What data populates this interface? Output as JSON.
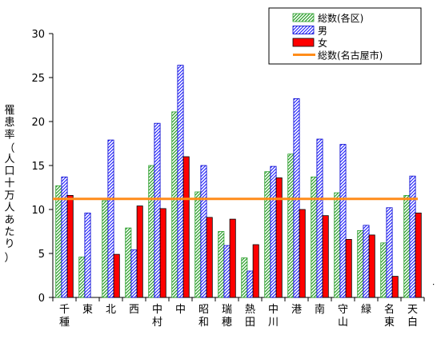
{
  "chart_data": {
    "type": "bar",
    "categories": [
      "千種",
      "東",
      "北",
      "西",
      "中村",
      "中",
      "昭和",
      "瑞穂",
      "熱田",
      "中川",
      "港",
      "南",
      "守山",
      "緑",
      "名東",
      "天白"
    ],
    "ylabel": "罹患率（人口十万人あたり）",
    "ylim": [
      0,
      30
    ],
    "yticks": [
      0,
      5,
      10,
      15,
      20,
      25,
      30
    ],
    "grid": false,
    "legend_position": "top-right",
    "series": [
      {
        "name": "総数(各区)",
        "color": "#2ca02c",
        "pattern": "green-diagonal-hatch",
        "values": [
          12.7,
          4.6,
          11.0,
          7.9,
          15.0,
          21.1,
          12.0,
          7.5,
          4.5,
          14.3,
          16.3,
          13.7,
          11.9,
          7.6,
          6.2,
          11.6
        ]
      },
      {
        "name": "男",
        "color": "#0000ff",
        "pattern": "blue-diagonal-hatch",
        "values": [
          13.7,
          9.6,
          17.9,
          5.4,
          19.8,
          26.4,
          15.0,
          5.9,
          3.0,
          14.9,
          22.6,
          18.0,
          17.4,
          8.2,
          10.2,
          13.8
        ]
      },
      {
        "name": "女",
        "color": "#ff0000",
        "pattern": "solid",
        "values": [
          11.6,
          0,
          4.9,
          10.4,
          10.1,
          16.0,
          9.1,
          8.9,
          6.0,
          13.6,
          10.0,
          9.3,
          6.6,
          7.1,
          2.4,
          9.6
        ]
      }
    ],
    "reference_line": {
      "name": "総数(名古屋市)",
      "value": 11.2,
      "color": "#ff8c1a"
    }
  }
}
